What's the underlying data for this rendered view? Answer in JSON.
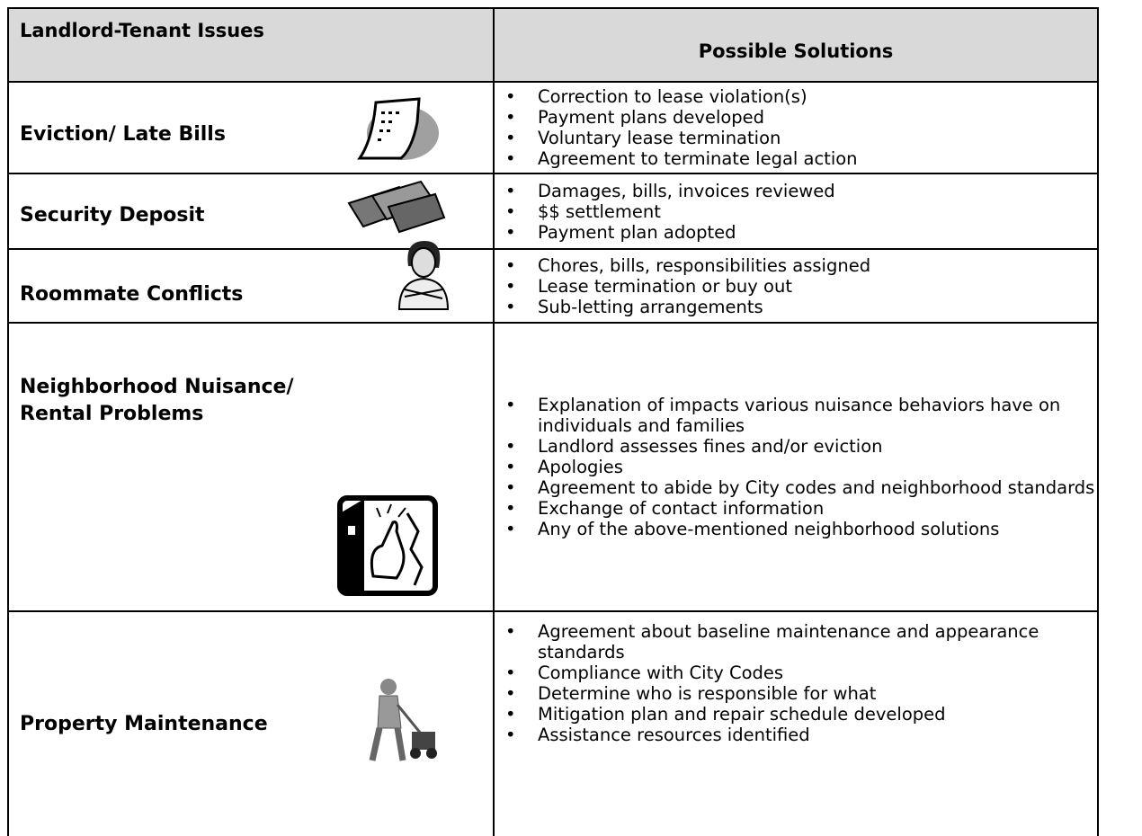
{
  "table": {
    "headers": [
      "Landlord-Tenant Issues",
      "Possible Solutions"
    ],
    "rows": [
      {
        "issue": "Eviction/ Late Bills",
        "solutions": [
          "Correction to lease violation(s)",
          "Payment plans developed",
          "Voluntary lease termination",
          "Agreement to terminate legal action"
        ]
      },
      {
        "issue": "Security Deposit",
        "solutions": [
          "Damages, bills, invoices reviewed",
          "$$ settlement",
          "Payment plan adopted"
        ]
      },
      {
        "issue": "Roommate Conflicts",
        "solutions": [
          "Chores, bills, responsibilities assigned",
          "Lease termination or buy out",
          "Sub-letting arrangements"
        ]
      },
      {
        "issue": "Neighborhood Nuisance/ Rental Problems",
        "solutions": [
          "Explanation of impacts various nuisance behaviors have on individuals and families",
          "Landlord assesses fines and/or eviction",
          "Apologies",
          "Agreement to abide by City codes and neighborhood standards",
          "Exchange of contact information",
          "Any of the above-mentioned neighborhood solutions"
        ]
      },
      {
        "issue": "Property Maintenance",
        "solutions": [
          "Agreement about baseline maintenance and appearance standards",
          "Compliance with City Codes",
          "Determine who is responsible for what",
          "Mitigation plan and repair schedule developed",
          "Assistance resources identified"
        ]
      }
    ]
  }
}
